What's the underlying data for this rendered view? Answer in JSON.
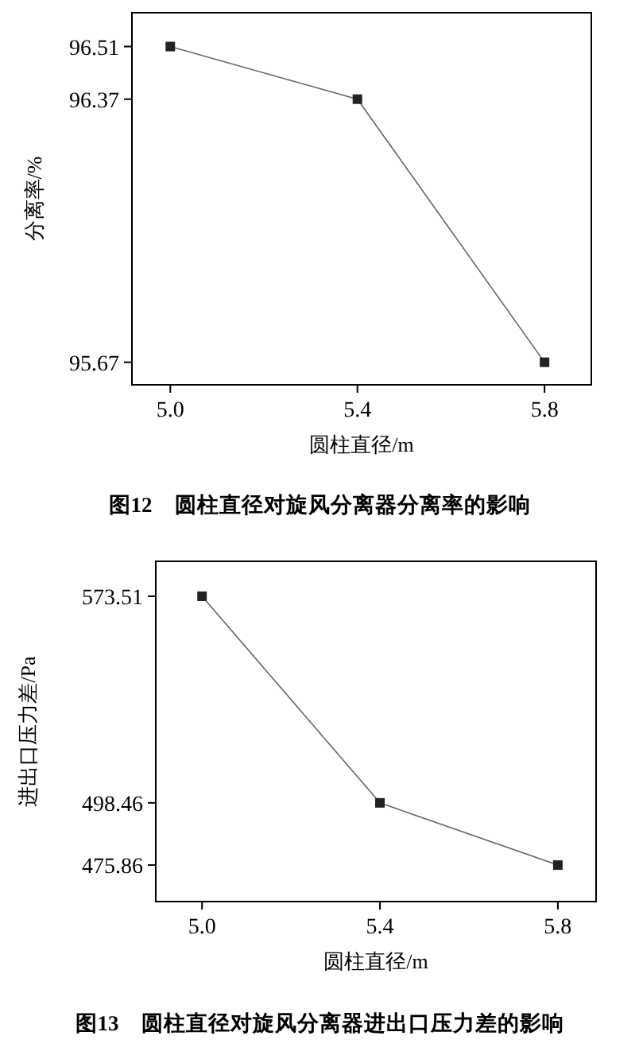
{
  "chart_data": [
    {
      "type": "line",
      "title": "图12　圆柱直径对旋风分离器分离率的影响",
      "xlabel": "圆柱直径/m",
      "ylabel": "分离率/%",
      "x": [
        5.0,
        5.4,
        5.8
      ],
      "series": [
        {
          "color": "#222222",
          "values": [
            96.51,
            96.37,
            95.67
          ]
        }
      ],
      "xlim": [
        4.918,
        5.9
      ],
      "ylim": [
        95.61,
        96.6
      ],
      "xticks": [
        {
          "value": 5.0,
          "label": "5.0"
        },
        {
          "value": 5.4,
          "label": "5.4"
        },
        {
          "value": 5.8,
          "label": "5.8"
        }
      ],
      "yticks": [
        95.67,
        96.37,
        96.51
      ],
      "marker": "square",
      "line_style": "solid",
      "grid": false
    },
    {
      "type": "line",
      "title": "图13　圆柱直径对旋风分离器进出口压力差的影响",
      "xlabel": "圆柱直径/m",
      "ylabel": "进出口压力差/Pa",
      "x": [
        5.0,
        5.4,
        5.8
      ],
      "series": [
        {
          "color": "#222222",
          "values": [
            573.51,
            498.46,
            475.86
          ]
        }
      ],
      "xlim": [
        4.896,
        5.886
      ],
      "ylim": [
        462.6,
        586.2
      ],
      "xticks": [
        {
          "value": 5.0,
          "label": "5.0"
        },
        {
          "value": 5.4,
          "label": "5.4"
        },
        {
          "value": 5.8,
          "label": "5.8"
        }
      ],
      "yticks": [
        475.86,
        498.46,
        573.51
      ],
      "marker": "square",
      "line_style": "solid",
      "grid": false
    }
  ]
}
